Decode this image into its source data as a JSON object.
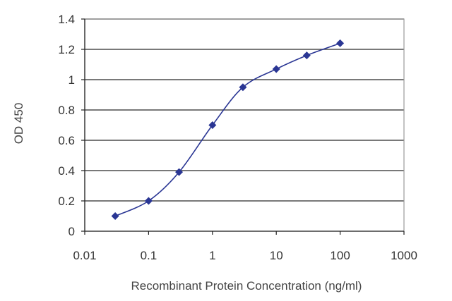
{
  "chart_data": {
    "type": "line",
    "xlabel": "Recombinant Protein Concentration (ng/ml)",
    "ylabel": "OD 450",
    "x_scale": "log",
    "xlim": [
      0.01,
      1000
    ],
    "ylim": [
      0,
      1.4
    ],
    "x_ticks": [
      "0.01",
      "0.1",
      "1",
      "10",
      "100",
      "1000"
    ],
    "y_ticks": [
      "0",
      "0.2",
      "0.4",
      "0.6",
      "0.8",
      "1",
      "1.2",
      "1.4"
    ],
    "grid": "horizontal",
    "series": [
      {
        "color": "#2a3694",
        "x": [
          0.03,
          0.1,
          0.3,
          1,
          3,
          10,
          30,
          100
        ],
        "y": [
          0.1,
          0.2,
          0.39,
          0.7,
          0.95,
          1.07,
          1.16,
          1.24
        ]
      }
    ]
  }
}
